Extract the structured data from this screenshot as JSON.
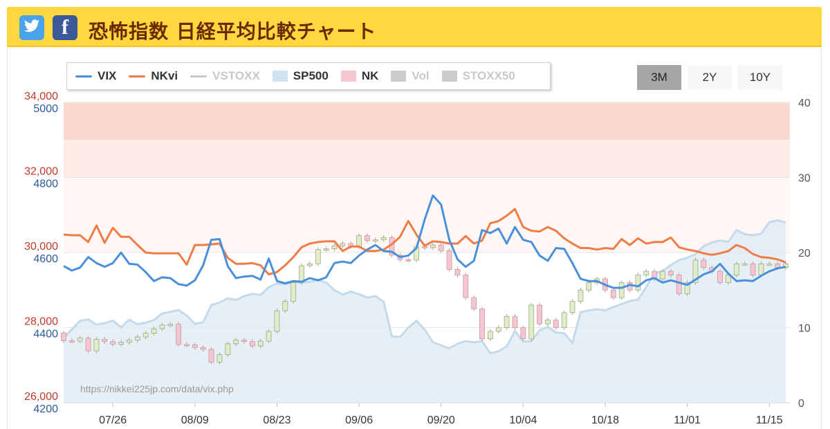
{
  "header": {
    "title": "恐怖指数 日経平均比較チャート",
    "twitter_icon": "twitter-icon",
    "facebook_icon": "facebook-icon",
    "facebook_glyph": "f"
  },
  "legend": [
    {
      "label": "VIX",
      "kind": "line",
      "color": "#4a90d9",
      "active": true
    },
    {
      "label": "NKvi",
      "kind": "line",
      "color": "#f07c45",
      "active": true
    },
    {
      "label": "VSTOXX",
      "kind": "line",
      "color": "#c8c8c8",
      "active": false
    },
    {
      "label": "SP500",
      "kind": "box",
      "color": "#cfe3f1",
      "active": true
    },
    {
      "label": "NK",
      "kind": "box",
      "color": "#f6c7cf",
      "active": true
    },
    {
      "label": "Vol",
      "kind": "box",
      "color": "#cccccc",
      "active": false
    },
    {
      "label": "STOXX50",
      "kind": "box",
      "color": "#cccccc",
      "active": false
    }
  ],
  "range_buttons": [
    {
      "label": "3M",
      "active": true
    },
    {
      "label": "2Y",
      "active": false
    },
    {
      "label": "10Y",
      "active": false
    }
  ],
  "watermark": "https://nikkei225jp.com/data/vix.php",
  "chart_data": {
    "type": "line",
    "x_tick_labels": [
      "07/26",
      "08/09",
      "08/23",
      "09/06",
      "09/20",
      "10/04",
      "10/18",
      "11/01",
      "11/15"
    ],
    "axes": {
      "left_nk": {
        "ticks": [
          "34,000",
          "32,000",
          "30,000",
          "28,000",
          "26,000"
        ],
        "range": [
          26000,
          34000
        ],
        "color": "#c0392b"
      },
      "left_sp500": {
        "ticks": [
          "5000",
          "4800",
          "4600",
          "4400",
          "4200"
        ],
        "range": [
          4200,
          5000
        ],
        "color": "#2a5a9a"
      },
      "right_vix": {
        "ticks": [
          "40",
          "30",
          "20",
          "10",
          "0"
        ],
        "range": [
          0,
          40
        ],
        "color": "#555555"
      }
    },
    "bands": [
      {
        "from": 35,
        "to": 40,
        "color": "#fbd9d2"
      },
      {
        "from": 30,
        "to": 35,
        "color": "#fdebe6"
      },
      {
        "from": 20,
        "to": 30,
        "color": "#fef7f5"
      }
    ],
    "series": [
      {
        "name": "VIX",
        "color": "#4a90d9",
        "axis": "right_vix",
        "values": [
          18.2,
          17.6,
          18.0,
          19.4,
          18.6,
          18.1,
          18.6,
          20.0,
          18.5,
          18.4,
          17.4,
          16.2,
          16.7,
          16.6,
          15.8,
          15.6,
          16.3,
          18.3,
          21.7,
          21.8,
          18.2,
          16.6,
          16.8,
          16.9,
          16.4,
          19.2,
          16.2,
          15.9,
          16.2,
          16.1,
          16.6,
          16.3,
          16.7,
          18.6,
          18.8,
          18.6,
          19.6,
          20.4,
          21.0,
          20.2,
          20.1,
          19.4,
          19.6,
          20.6,
          24.4,
          27.6,
          26.4,
          21.7,
          19.1,
          18.1,
          18.9,
          23.0,
          22.6,
          23.2,
          21.2,
          23.4,
          21.7,
          21.4,
          19.6,
          18.9,
          20.6,
          20.5,
          18.6,
          16.5,
          16.2,
          16.2,
          15.7,
          15.3,
          15.3,
          15.7,
          15.5,
          16.3,
          16.6,
          16.0,
          16.3,
          16.0,
          15.7,
          16.4,
          17.1,
          17.5,
          18.5,
          17.2,
          16.2,
          16.3,
          16.2,
          16.9,
          17.5,
          17.9,
          18.1
        ]
      },
      {
        "name": "NKvi",
        "color": "#f07c45",
        "axis": "right_vix",
        "values": [
          22.4,
          22.3,
          22.3,
          21.4,
          23.6,
          21.3,
          23.3,
          22.1,
          22.1,
          21.0,
          20.0,
          19.9,
          19.9,
          19.9,
          19.9,
          18.4,
          21.0,
          21.0,
          21.1,
          21.2,
          19.3,
          18.5,
          18.5,
          18.6,
          18.3,
          17.1,
          17.4,
          18.3,
          19.4,
          20.7,
          21.2,
          21.4,
          21.5,
          21.5,
          20.2,
          20.8,
          20.8,
          20.2,
          20.2,
          20.4,
          21.1,
          22.1,
          24.2,
          22.4,
          20.9,
          21.5,
          21.4,
          21.2,
          21.2,
          22.2,
          21.2,
          21.6,
          23.9,
          24.2,
          24.9,
          25.8,
          23.4,
          22.9,
          22.8,
          23.4,
          22.9,
          21.9,
          21.2,
          20.6,
          20.6,
          20.4,
          20.6,
          20.5,
          21.8,
          21.0,
          21.9,
          21.2,
          21.4,
          21.4,
          22.0,
          20.7,
          20.4,
          20.2,
          19.9,
          19.7,
          19.9,
          20.2,
          21.0,
          20.6,
          19.8,
          19.4,
          19.3,
          19.1,
          18.7
        ]
      },
      {
        "name": "SP500",
        "color": "#cfe3f1",
        "axis": "left_sp500",
        "values": [
          4373,
          4395,
          4418,
          4422,
          4408,
          4412,
          4419,
          4401,
          4421,
          4409,
          4413,
          4420,
          4438,
          4442,
          4447,
          4432,
          4410,
          4414,
          4460,
          4467,
          4478,
          4474,
          4484,
          4490,
          4487,
          4508,
          4518,
          4516,
          4520,
          4520,
          4522,
          4527,
          4520,
          4500,
          4488,
          4496,
          4489,
          4480,
          4484,
          4469,
          4377,
          4375,
          4400,
          4418,
          4395,
          4361,
          4353,
          4345,
          4357,
          4364,
          4361,
          4364,
          4332,
          4337,
          4350,
          4391,
          4363,
          4364,
          4393,
          4402,
          4387,
          4385,
          4359,
          4441,
          4446,
          4449,
          4446,
          4455,
          4463,
          4471,
          4475,
          4508,
          4545,
          4550,
          4567,
          4580,
          4586,
          4596,
          4617,
          4627,
          4632,
          4629,
          4660,
          4649,
          4646,
          4650,
          4681,
          4686,
          4680
        ]
      },
      {
        "name": "NK",
        "kind": "candlestick",
        "axis": "left_nk",
        "open": [
          27860,
          27650,
          27640,
          27720,
          27380,
          27690,
          27630,
          27560,
          27610,
          27670,
          27750,
          27850,
          27970,
          28070,
          28090,
          27550,
          27540,
          27470,
          27420,
          27080,
          27280,
          27570,
          27670,
          27630,
          27510,
          27640,
          27900,
          28450,
          28700,
          29200,
          29650,
          29700,
          30080,
          30100,
          30180,
          30240,
          30160,
          30450,
          30320,
          30340,
          30400,
          29930,
          29810,
          29800,
          30160,
          30130,
          30200,
          30050,
          29550,
          29400,
          28800,
          28500,
          27700,
          27900,
          28000,
          28300,
          28000,
          27700,
          28600,
          28100,
          28200,
          28000,
          28400,
          28700,
          29000,
          29200,
          29300,
          29000,
          28800,
          29200,
          29000,
          29400,
          29500,
          29300,
          29500,
          29400,
          28900,
          29200,
          29800,
          29600,
          29500,
          29200,
          29400,
          29700,
          29700,
          29400,
          29700,
          29700,
          29600
        ],
        "close": [
          27650,
          27640,
          27720,
          27380,
          27690,
          27630,
          27560,
          27610,
          27670,
          27750,
          27850,
          27970,
          28070,
          28090,
          27550,
          27540,
          27470,
          27420,
          27080,
          27280,
          27570,
          27670,
          27630,
          27510,
          27640,
          27900,
          28450,
          28700,
          29200,
          29650,
          29700,
          30080,
          30100,
          30180,
          30240,
          30160,
          30450,
          30320,
          30340,
          30400,
          29930,
          29810,
          29800,
          30160,
          30130,
          30200,
          30050,
          29550,
          29400,
          28800,
          28500,
          27700,
          27900,
          28000,
          28300,
          28000,
          27700,
          28600,
          28100,
          28200,
          28000,
          28400,
          28700,
          29000,
          29200,
          29300,
          29000,
          28800,
          29200,
          29000,
          29400,
          29500,
          29300,
          29500,
          29400,
          28900,
          29200,
          29800,
          29600,
          29500,
          29200,
          29400,
          29700,
          29700,
          29400,
          29700,
          29700,
          29600,
          29700
        ]
      }
    ]
  }
}
